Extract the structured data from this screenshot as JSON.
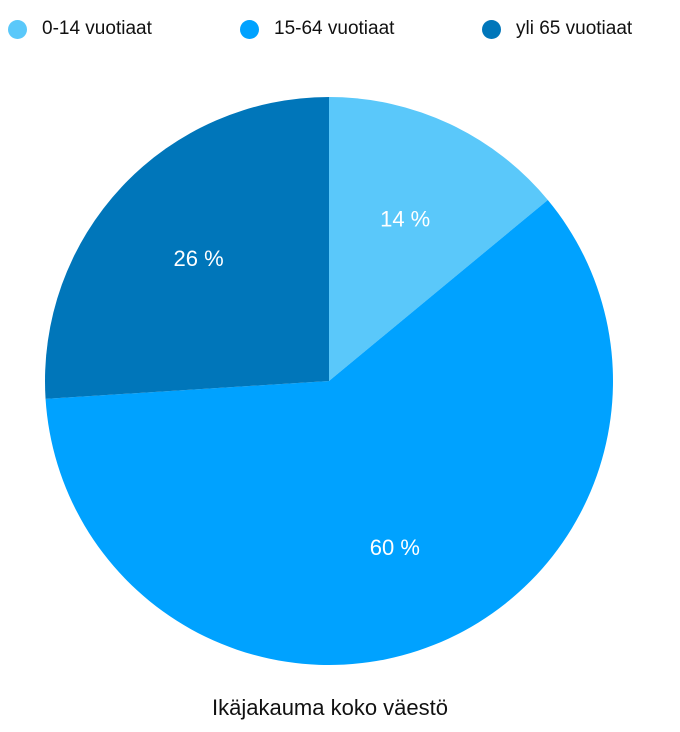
{
  "chart_data": {
    "type": "pie",
    "title": "Ikäjakauma koko väestö",
    "series": [
      {
        "name": "0-14 vuotiaat",
        "value": 14,
        "label": "14 %",
        "color": "#5ac8fa"
      },
      {
        "name": "15-64 vuotiaat",
        "value": 60,
        "label": "60 %",
        "color": "#00a2ff"
      },
      {
        "name": "yli 65 vuotiaat",
        "value": 26,
        "label": "26 %",
        "color": "#0076ba"
      }
    ],
    "legend_position": "top"
  }
}
